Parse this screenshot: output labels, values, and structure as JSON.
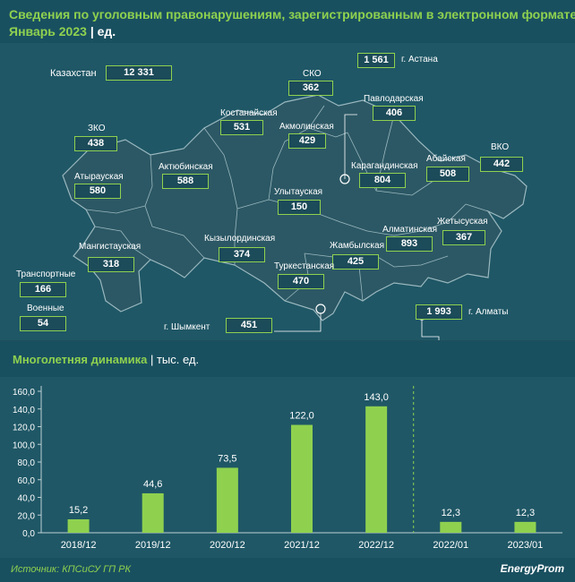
{
  "header": {
    "title_line1": "Сведения по уголовным правонарушениям, зарегистрированным в электронном формате.",
    "title_line2_period": "Январь 2023",
    "title_line2_sep": "|",
    "title_line2_unit": "ед."
  },
  "map": {
    "kazakhstan": {
      "label": "Казахстан",
      "value": "12 331"
    },
    "regions": [
      {
        "id": "sko",
        "label": "СКО",
        "value": "362"
      },
      {
        "id": "astana",
        "label": "г. Астана",
        "value": "1 561"
      },
      {
        "id": "pavlodar",
        "label": "Павлодарская",
        "value": "406"
      },
      {
        "id": "kostanay",
        "label": "Костанайская",
        "value": "531"
      },
      {
        "id": "akmola",
        "label": "Акмолинская",
        "value": "429"
      },
      {
        "id": "zko",
        "label": "ЗКО",
        "value": "438"
      },
      {
        "id": "aktobe",
        "label": "Актюбинская",
        "value": "588"
      },
      {
        "id": "atyrau",
        "label": "Атырауская",
        "value": "580"
      },
      {
        "id": "karaganda",
        "label": "Карагандинская",
        "value": "804"
      },
      {
        "id": "abay",
        "label": "Абайская",
        "value": "508"
      },
      {
        "id": "vko",
        "label": "ВКО",
        "value": "442"
      },
      {
        "id": "ulytau",
        "label": "Улытауская",
        "value": "150"
      },
      {
        "id": "kyzylorda",
        "label": "Кызылординская",
        "value": "374"
      },
      {
        "id": "mangystau",
        "label": "Мангистауская",
        "value": "318"
      },
      {
        "id": "zhetysu",
        "label": "Жетысуская",
        "value": "367"
      },
      {
        "id": "almatyobl",
        "label": "Алматинская",
        "value": "893"
      },
      {
        "id": "zhambyl",
        "label": "Жамбылская",
        "value": "425"
      },
      {
        "id": "turkestan",
        "label": "Туркестанская",
        "value": "470"
      },
      {
        "id": "transport",
        "label": "Транспортные",
        "value": "166"
      },
      {
        "id": "military",
        "label": "Военные",
        "value": "54"
      },
      {
        "id": "shymkent",
        "label": "г. Шымкент",
        "value": "451"
      },
      {
        "id": "almaty",
        "label": "г. Алматы",
        "value": "1 993"
      }
    ]
  },
  "section2": {
    "title": "Многолетняя динамика",
    "sep": "|",
    "unit": "тыс. ед."
  },
  "colors": {
    "accent": "#8fd14f",
    "background": "#1f5766",
    "header": "#195060",
    "land": "#2c5865",
    "border": "#9ab8bf"
  },
  "chart_data": {
    "type": "bar",
    "categories": [
      "2018/12",
      "2019/12",
      "2020/12",
      "2021/12",
      "2022/12",
      "2022/01",
      "2023/01"
    ],
    "values": [
      15.2,
      44.6,
      73.5,
      122.0,
      143.0,
      12.3,
      12.3
    ],
    "value_labels": [
      "15,2",
      "44,6",
      "73,5",
      "122,0",
      "143,0",
      "12,3",
      "12,3"
    ],
    "ylim": [
      0,
      160
    ],
    "yticks": [
      "0,0",
      "20,0",
      "40,0",
      "60,0",
      "80,0",
      "100,0",
      "120,0",
      "140,0",
      "160,0"
    ],
    "grid": false,
    "divider_after_index": 4,
    "bar_color": "#8fd14f"
  },
  "footer": {
    "source": "Источник: КПСиСУ ГП РК",
    "logo": "EnergyProm"
  }
}
